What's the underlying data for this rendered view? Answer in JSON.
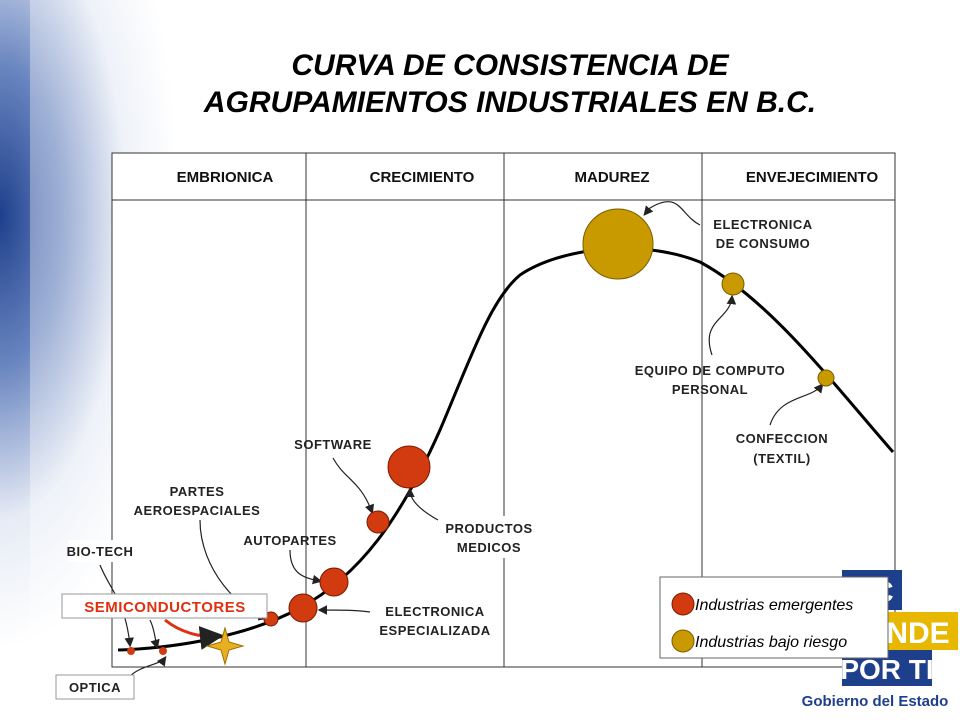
{
  "title": [
    "CURVA DE CONSISTENCIA DE",
    "AGRUPAMIENTOS INDUSTRIALES EN B.C."
  ],
  "phases": [
    "EMBRIONICA",
    "CRECIMIENTO",
    "MADUREZ",
    "ENVEJECIMIENTO"
  ],
  "labels": {
    "electronica_consumo": [
      "ELECTRONICA",
      "DE CONSUMO"
    ],
    "equipo_computo": [
      "EQUIPO DE COMPUTO",
      "PERSONAL"
    ],
    "confeccion": [
      "CONFECCION",
      "(TEXTIL)"
    ],
    "software": [
      "SOFTWARE"
    ],
    "partes_aeroespaciales": [
      "PARTES",
      "AEROESPACIALES"
    ],
    "autopartes": [
      "AUTOPARTES"
    ],
    "productos_medicos": [
      "PRODUCTOS",
      "MEDICOS"
    ],
    "biotech": [
      "BIO-TECH"
    ],
    "semiconductores": [
      "SEMICONDUCTORES"
    ],
    "electronica_especializada": [
      "ELECTRONICA",
      "ESPECIALIZADA"
    ],
    "optica": [
      "OPTICA"
    ]
  },
  "legend": [
    "Industrias emergentes",
    "Industrias bajo riesgo"
  ],
  "logo": {
    "line1": "BC",
    "line2": "NDE",
    "line3": "POR TI",
    "footer": "Gobierno del Estado"
  }
}
